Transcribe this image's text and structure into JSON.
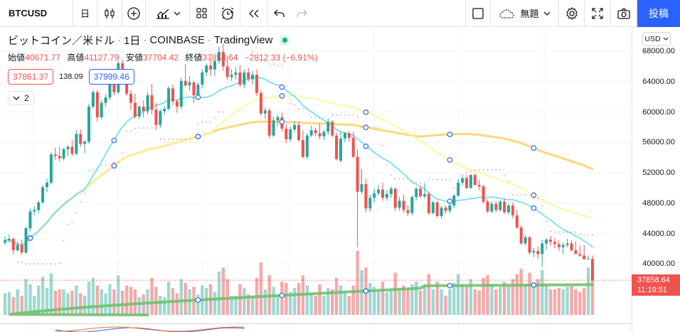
{
  "toolbar": {
    "symbol": "BTCUSD",
    "interval": "日",
    "layout_name": "無題",
    "publish_label": "投稿",
    "icons": [
      "plus-circle-icon",
      "candles-icon",
      "indicators-icon",
      "layouts-icon",
      "alert-clock-icon",
      "replay-icon",
      "undo-icon",
      "redo-icon",
      "settings-icon",
      "fullscreen-icon",
      "camera-icon",
      "cloud-icon"
    ]
  },
  "legend": {
    "title": "ビットコイン／米ドル",
    "interval": "1日",
    "exchange": "COINBASE",
    "source": "TradingView",
    "open_label": "始値",
    "open": "40671.77",
    "high_label": "高値",
    "high": "41127.79",
    "low_label": "安値",
    "low": "37704.42",
    "close_label": "終値",
    "close": "37858.64",
    "change": "−2812.33 (−6.91%)",
    "bid": "37861.37",
    "spread": "138.09",
    "ask": "37999.46",
    "indicators_collapsed_count": "2"
  },
  "price_scale": {
    "currency": "USD",
    "ticks": [
      "68000.00",
      "64000.00",
      "60000.00",
      "56000.00",
      "52000.00",
      "48000.00",
      "44000.00",
      "40000.00"
    ],
    "last_price": "37858.64",
    "countdown": "11:19:51"
  },
  "colors": {
    "up": "#26a69a",
    "down": "#ef5350",
    "vol_up": "#9fd8d2",
    "vol_down": "#f6a9a8",
    "ma_cyan": "#7fe3f2",
    "ma_yellow": "#fff59d",
    "ma_orange": "#ffd77a",
    "ma_green": "#6abf69",
    "psar": "#ef5350",
    "accent": "#2962ff"
  },
  "chart_data": {
    "type": "candlestick",
    "symbol": "BTCUSD",
    "y_unit": "USD",
    "ylim": [
      36500,
      69500
    ],
    "candles": [
      [
        42800,
        43600,
        42500,
        43100
      ],
      [
        43100,
        43900,
        42800,
        43300
      ],
      [
        43300,
        43500,
        41400,
        41800
      ],
      [
        41800,
        42900,
        41600,
        42500
      ],
      [
        42500,
        43200,
        41200,
        41500
      ],
      [
        41500,
        44900,
        41300,
        44700
      ],
      [
        44700,
        47300,
        44300,
        46900
      ],
      [
        46900,
        47600,
        46400,
        47100
      ],
      [
        47100,
        48400,
        46700,
        48100
      ],
      [
        48100,
        50400,
        47900,
        50100
      ],
      [
        50100,
        51200,
        49400,
        50700
      ],
      [
        50700,
        54700,
        50500,
        54400
      ],
      [
        54400,
        55300,
        53700,
        54200
      ],
      [
        54200,
        55400,
        53500,
        53900
      ],
      [
        53900,
        55300,
        53600,
        55100
      ],
      [
        55100,
        55700,
        54200,
        55400
      ],
      [
        55400,
        56300,
        54200,
        54500
      ],
      [
        54500,
        57600,
        54300,
        57100
      ],
      [
        57100,
        57700,
        55400,
        55800
      ],
      [
        55800,
        56300,
        54600,
        56100
      ],
      [
        56100,
        61100,
        55800,
        60700
      ],
      [
        60700,
        62900,
        60400,
        62600
      ],
      [
        62600,
        62900,
        58700,
        59300
      ],
      [
        59300,
        61500,
        59000,
        61200
      ],
      [
        61200,
        62300,
        60700,
        61900
      ],
      [
        61900,
        64800,
        61600,
        64300
      ],
      [
        64300,
        64800,
        62200,
        62600
      ],
      [
        62600,
        66700,
        62400,
        66400
      ],
      [
        66400,
        66900,
        64300,
        64900
      ],
      [
        64900,
        65200,
        62100,
        62400
      ],
      [
        62400,
        62900,
        60200,
        61200
      ],
      [
        61200,
        62400,
        59100,
        59400
      ],
      [
        59400,
        60900,
        59100,
        60700
      ],
      [
        60700,
        61500,
        59300,
        60100
      ],
      [
        60100,
        62600,
        59700,
        62200
      ],
      [
        62200,
        63700,
        59700,
        60300
      ],
      [
        60300,
        61200,
        57600,
        58300
      ],
      [
        58300,
        60400,
        57900,
        60100
      ],
      [
        60100,
        60800,
        59600,
        60400
      ],
      [
        60400,
        63400,
        60200,
        63100
      ],
      [
        63100,
        63600,
        60900,
        61400
      ],
      [
        61400,
        61700,
        59900,
        60700
      ],
      [
        60700,
        64500,
        60400,
        64100
      ],
      [
        64100,
        66300,
        63300,
        63500
      ],
      [
        63500,
        64700,
        62800,
        63900
      ],
      [
        63900,
        64100,
        61200,
        62200
      ],
      [
        62200,
        63900,
        61800,
        63600
      ],
      [
        63600,
        65600,
        63100,
        65200
      ],
      [
        65200,
        66400,
        64700,
        66100
      ],
      [
        66100,
        67100,
        64700,
        65600
      ],
      [
        65600,
        66900,
        64700,
        66700
      ],
      [
        66700,
        68600,
        66300,
        67900
      ],
      [
        67900,
        69000,
        65400,
        66000
      ],
      [
        66000,
        67400,
        64200,
        64600
      ],
      [
        64600,
        65600,
        64100,
        64900
      ],
      [
        64900,
        65900,
        64300,
        65200
      ],
      [
        65200,
        66200,
        63300,
        63600
      ],
      [
        63600,
        65600,
        63100,
        65200
      ],
      [
        65200,
        65800,
        64000,
        64300
      ],
      [
        64300,
        65400,
        63600,
        64900
      ],
      [
        64900,
        65600,
        62100,
        62500
      ],
      [
        62500,
        62900,
        59500,
        59800
      ],
      [
        59800,
        60600,
        59100,
        60200
      ],
      [
        60200,
        60500,
        56500,
        56900
      ],
      [
        56900,
        59400,
        56700,
        58900
      ],
      [
        58900,
        59600,
        58200,
        59300
      ],
      [
        59300,
        59900,
        57400,
        57800
      ],
      [
        57800,
        58400,
        55900,
        56400
      ],
      [
        56400,
        58100,
        56100,
        57700
      ],
      [
        57700,
        58800,
        57300,
        58300
      ],
      [
        58300,
        58700,
        56100,
        56300
      ],
      [
        56300,
        57600,
        53900,
        54100
      ],
      [
        54100,
        57200,
        53800,
        56900
      ],
      [
        56900,
        58200,
        56700,
        57600
      ],
      [
        57600,
        57900,
        56800,
        57200
      ],
      [
        57200,
        58500,
        56400,
        56800
      ],
      [
        56800,
        57600,
        56300,
        57400
      ],
      [
        57400,
        59100,
        57000,
        58700
      ],
      [
        58700,
        58900,
        56700,
        56900
      ],
      [
        56900,
        57300,
        53600,
        53800
      ],
      [
        53600,
        57400,
        53300,
        56500
      ],
      [
        56500,
        57400,
        56000,
        57200
      ],
      [
        57200,
        57500,
        56100,
        56600
      ],
      [
        56600,
        57400,
        53900,
        54100
      ],
      [
        54100,
        55100,
        42200,
        49500
      ],
      [
        49500,
        52500,
        49200,
        50500
      ],
      [
        50500,
        51200,
        46800,
        47300
      ],
      [
        47300,
        49100,
        46900,
        48700
      ],
      [
        48700,
        49900,
        48100,
        49300
      ],
      [
        49300,
        50400,
        49000,
        49800
      ],
      [
        49800,
        50700,
        48300,
        48700
      ],
      [
        48700,
        49700,
        48300,
        49200
      ],
      [
        49200,
        50200,
        48700,
        49900
      ],
      [
        49900,
        50100,
        46900,
        47400
      ],
      [
        47400,
        48800,
        47000,
        48300
      ],
      [
        48300,
        49100,
        46700,
        47100
      ],
      [
        47100,
        47700,
        46300,
        46700
      ],
      [
        46700,
        49000,
        46400,
        48800
      ],
      [
        48800,
        50100,
        48400,
        49900
      ],
      [
        49900,
        50300,
        48700,
        48900
      ],
      [
        48900,
        50600,
        48600,
        49200
      ],
      [
        49200,
        49500,
        46400,
        46700
      ],
      [
        46700,
        48300,
        46500,
        48100
      ],
      [
        48100,
        48300,
        46100,
        46300
      ],
      [
        46300,
        47600,
        46000,
        47400
      ],
      [
        47400,
        47700,
        46600,
        47000
      ],
      [
        47000,
        47900,
        46700,
        47700
      ],
      [
        47700,
        49200,
        47400,
        49000
      ],
      [
        49000,
        51200,
        48800,
        50700
      ],
      [
        50700,
        51600,
        50300,
        51300
      ],
      [
        51300,
        51700,
        49800,
        50000
      ],
      [
        50000,
        51800,
        49900,
        51700
      ],
      [
        51700,
        51900,
        50300,
        50400
      ],
      [
        50400,
        51100,
        49700,
        50200
      ],
      [
        50200,
        50400,
        47900,
        48200
      ],
      [
        48200,
        48500,
        46700,
        46900
      ],
      [
        46900,
        48200,
        46700,
        47900
      ],
      [
        47900,
        48300,
        46800,
        47100
      ],
      [
        47100,
        48400,
        46900,
        48200
      ],
      [
        48200,
        48600,
        46600,
        46800
      ],
      [
        46800,
        48000,
        46500,
        47700
      ],
      [
        47700,
        48100,
        46000,
        46400
      ],
      [
        46400,
        47100,
        44600,
        44800
      ],
      [
        44800,
        45100,
        42500,
        42700
      ],
      [
        42700,
        43800,
        42400,
        43500
      ],
      [
        43500,
        43700,
        41200,
        41500
      ],
      [
        41500,
        42100,
        40900,
        41700
      ],
      [
        41700,
        42300,
        40700,
        41300
      ],
      [
        41300,
        43200,
        39600,
        42700
      ],
      [
        42700,
        43400,
        41900,
        43200
      ],
      [
        43200,
        43700,
        42400,
        42900
      ],
      [
        42900,
        43400,
        42100,
        42600
      ],
      [
        42600,
        43100,
        41700,
        42200
      ],
      [
        42200,
        42800,
        41300,
        42500
      ],
      [
        42500,
        43300,
        42200,
        42700
      ],
      [
        42700,
        43100,
        41600,
        41800
      ],
      [
        41800,
        43000,
        41400,
        41300
      ],
      [
        41300,
        42400,
        40900,
        41100
      ],
      [
        41100,
        42500,
        40900,
        40600
      ],
      [
        40600,
        41100,
        40700,
        40700
      ],
      [
        40671.77,
        41127.79,
        37704.42,
        37858.64
      ]
    ],
    "volume": [
      34,
      36,
      28,
      40,
      30,
      56,
      48,
      30,
      46,
      60,
      42,
      65,
      38,
      40,
      40,
      34,
      38,
      46,
      34,
      30,
      52,
      58,
      46,
      40,
      34,
      48,
      40,
      62,
      38,
      46,
      44,
      40,
      28,
      32,
      40,
      58,
      44,
      30,
      28,
      52,
      42,
      34,
      56,
      50,
      40,
      44,
      32,
      46,
      42,
      48,
      36,
      68,
      74,
      56,
      30,
      30,
      48,
      42,
      32,
      30,
      58,
      82,
      40,
      62,
      44,
      30,
      52,
      50,
      36,
      42,
      50,
      62,
      46,
      34,
      30,
      48,
      30,
      42,
      40,
      58,
      46,
      34,
      30,
      46,
      100,
      70,
      74,
      50,
      44,
      38,
      52,
      36,
      40,
      66,
      40,
      46,
      40,
      48,
      52,
      38,
      46,
      64,
      40,
      52,
      40,
      30,
      40,
      50,
      64,
      48,
      44,
      56,
      40,
      38,
      58,
      62,
      48,
      40,
      44,
      52,
      46,
      56,
      64,
      72,
      46,
      66,
      44,
      56,
      70,
      46,
      40,
      40,
      42,
      40,
      44,
      46,
      40,
      36,
      42,
      74,
      64
    ]
  }
}
